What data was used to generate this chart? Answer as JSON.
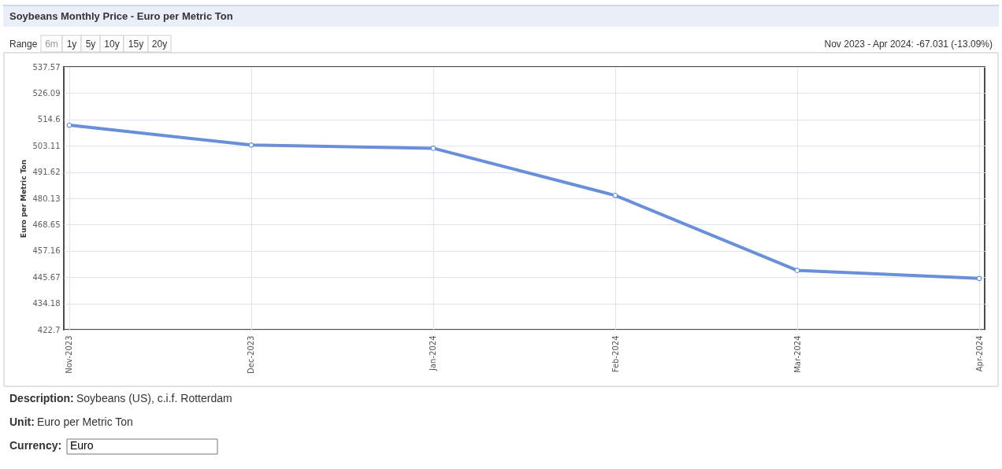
{
  "chart_data": {
    "type": "line",
    "title": "Soybeans Monthly Price - Euro per Metric Ton",
    "ylabel": "Euro per Metric Ton",
    "categories": [
      "Nov-2023",
      "Dec-2023",
      "Jan-2024",
      "Feb-2024",
      "Mar-2024",
      "Apr-2024"
    ],
    "series": [
      {
        "color": "#6a8fd9",
        "values": [
          512.1,
          503.4,
          502.0,
          481.4,
          448.6,
          445.1
        ]
      }
    ],
    "ylim": [
      422.7,
      537.57
    ],
    "yticks": [
      422.7,
      434.18,
      445.67,
      457.16,
      468.65,
      480.13,
      491.62,
      503.11,
      514.6,
      526.09,
      537.57
    ],
    "grid": true,
    "marker": "circle",
    "line_style": "solid",
    "annotations": [
      "Range",
      "6m",
      "1y",
      "5y",
      "10y",
      "15y",
      "20y",
      "Nov 2023 - Apr 2024: -67.031 (-13.09%)",
      "Description:",
      "Soybeans (US), c.i.f. Rotterdam",
      "Unit:",
      "Euro per Metric Ton",
      "Currency:",
      "Euro"
    ]
  }
}
